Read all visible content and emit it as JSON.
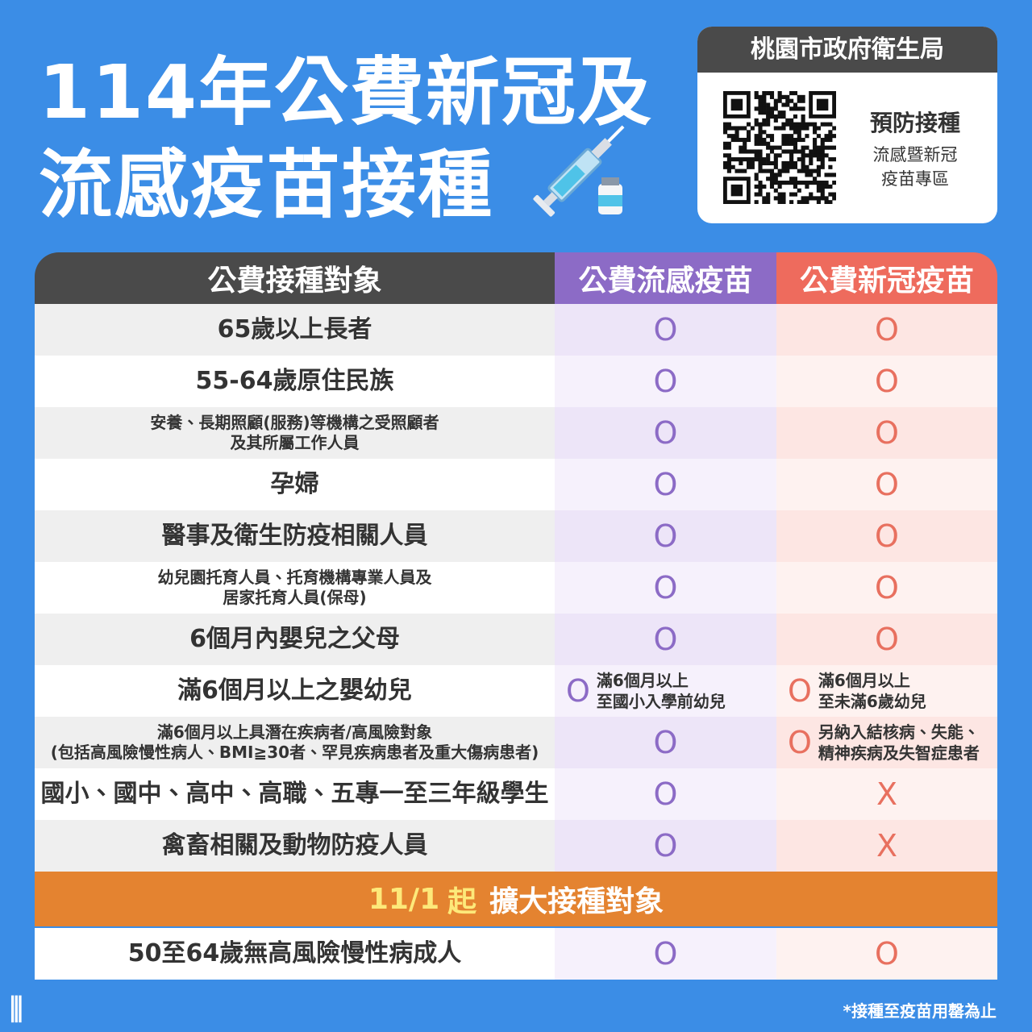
{
  "header": {
    "title": [
      "114年公費新冠及",
      "流感疫苗接種"
    ]
  },
  "qr_card": {
    "org": "桃園市政府衛生局",
    "label": "預防接種",
    "sub": [
      "流感暨新冠",
      "疫苗專區"
    ]
  },
  "table": {
    "columns": [
      "公費接種對象",
      "公費流感疫苗",
      "公費新冠疫苗"
    ],
    "rows": [
      {
        "target": [
          "65歲以上長者"
        ],
        "flu": {
          "mark": "O"
        },
        "covid": {
          "mark": "O"
        }
      },
      {
        "target": [
          "55-64歲原住民族"
        ],
        "flu": {
          "mark": "O"
        },
        "covid": {
          "mark": "O"
        }
      },
      {
        "target": [
          "安養、長期照顧(服務)等機構之受照顧者",
          "及其所屬工作人員"
        ],
        "flu": {
          "mark": "O"
        },
        "covid": {
          "mark": "O"
        }
      },
      {
        "target": [
          "孕婦"
        ],
        "flu": {
          "mark": "O"
        },
        "covid": {
          "mark": "O"
        }
      },
      {
        "target": [
          "醫事及衛生防疫相關人員"
        ],
        "flu": {
          "mark": "O"
        },
        "covid": {
          "mark": "O"
        }
      },
      {
        "target": [
          "幼兒園托育人員、托育機構專業人員及",
          "居家托育人員(保母)"
        ],
        "flu": {
          "mark": "O"
        },
        "covid": {
          "mark": "O"
        }
      },
      {
        "target": [
          "6個月內嬰兒之父母"
        ],
        "flu": {
          "mark": "O"
        },
        "covid": {
          "mark": "O"
        }
      },
      {
        "target": [
          "滿6個月以上之嬰幼兒"
        ],
        "flu": {
          "mark": "O",
          "note": [
            "滿6個月以上",
            "至國小入學前幼兒"
          ]
        },
        "covid": {
          "mark": "O",
          "note": [
            "滿6個月以上",
            "至未滿6歲幼兒"
          ]
        }
      },
      {
        "target": [
          "滿6個月以上具潛在疾病者/高風險對象",
          "(包括高風險慢性病人、BMI≧30者、罕見疾病患者及重大傷病患者)"
        ],
        "flu": {
          "mark": "O"
        },
        "covid": {
          "mark": "O",
          "note": [
            "另納入結核病、失能、",
            "精神疾病及失智症患者"
          ]
        }
      },
      {
        "target": [
          "國小、國中、高中、高職、五專一至三年級學生"
        ],
        "flu": {
          "mark": "O"
        },
        "covid": {
          "mark": "X"
        }
      },
      {
        "target": [
          "禽畜相關及動物防疫人員"
        ],
        "flu": {
          "mark": "O"
        },
        "covid": {
          "mark": "X"
        }
      }
    ]
  },
  "expansion": {
    "date": "11/1",
    "start": "起",
    "label": "擴大接種對象",
    "rows": [
      {
        "target": [
          "50至64歲無高風險慢性病成人"
        ],
        "flu": {
          "mark": "O"
        },
        "covid": {
          "mark": "O"
        }
      }
    ]
  },
  "footnote": "*接種至疫苗用罄為止"
}
